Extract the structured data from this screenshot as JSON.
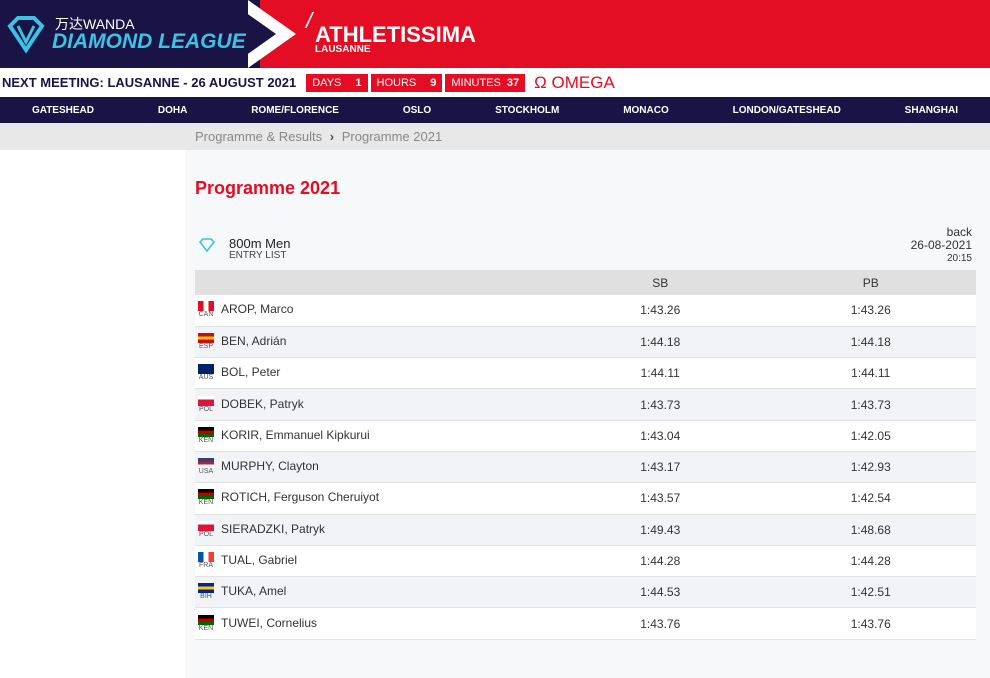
{
  "header": {
    "wanda": "万达WANDA",
    "league": "DIAMOND LEAGUE",
    "meeting_name": "ATHLETISSIMA",
    "meeting_city": "LAUSANNE"
  },
  "countdown": {
    "text": "NEXT MEETING: LAUSANNE - 26 AUGUST 2021",
    "days_label": "DAYS",
    "days": "1",
    "hours_label": "HOURS",
    "hours": "9",
    "minutes_label": "MINUTES",
    "minutes": "37",
    "sponsor": "Ω OMEGA"
  },
  "nav": [
    "GATESHEAD",
    "DOHA",
    "ROME/FLORENCE",
    "OSLO",
    "STOCKHOLM",
    "MONACO",
    "LONDON/GATESHEAD",
    "SHANGHAI"
  ],
  "breadcrumb": {
    "parent": "Programme & Results",
    "sep": "›",
    "current": "Programme 2021"
  },
  "page_title": "Programme 2021",
  "event": {
    "name": "800m Men",
    "sub": "ENTRY LIST",
    "back": "back",
    "date": "26-08-2021",
    "time": "20:15"
  },
  "table": {
    "headers": [
      "",
      "SB",
      "PB"
    ],
    "rows": [
      {
        "country": "CAN",
        "name": "AROP, Marco",
        "sb": "1:43.26",
        "pb": "1:43.26",
        "flag": [
          "#e30d24",
          "#fff",
          "#e30d24"
        ]
      },
      {
        "country": "ESP",
        "name": "BEN, Adrián",
        "sb": "1:44.18",
        "pb": "1:44.18",
        "flag": [
          "#c60b1e",
          "#ffc400",
          "#c60b1e"
        ]
      },
      {
        "country": "AUS",
        "name": "BOL, Peter",
        "sb": "1:44.11",
        "pb": "1:44.11",
        "flag": [
          "#012169",
          "#012169",
          "#012169"
        ]
      },
      {
        "country": "POL",
        "name": "DOBEK, Patryk",
        "sb": "1:43.73",
        "pb": "1:43.73",
        "flag": [
          "#fff",
          "#dc143c",
          "#dc143c"
        ]
      },
      {
        "country": "KEN",
        "name": "KORIR, Emmanuel Kipkurui",
        "sb": "1:43.04",
        "pb": "1:42.05",
        "flag": [
          "#000",
          "#bb0000",
          "#006600"
        ]
      },
      {
        "country": "USA",
        "name": "MURPHY, Clayton",
        "sb": "1:43.17",
        "pb": "1:42.93",
        "flag": [
          "#3c3b6e",
          "#b22234",
          "#fff"
        ]
      },
      {
        "country": "KEN",
        "name": "ROTICH, Ferguson Cheruiyot",
        "sb": "1:43.57",
        "pb": "1:42.54",
        "flag": [
          "#000",
          "#bb0000",
          "#006600"
        ]
      },
      {
        "country": "POL",
        "name": "SIERADZKI, Patryk",
        "sb": "1:49.43",
        "pb": "1:48.68",
        "flag": [
          "#fff",
          "#dc143c",
          "#dc143c"
        ]
      },
      {
        "country": "FRA",
        "name": "TUAL, Gabriel",
        "sb": "1:44.28",
        "pb": "1:44.28",
        "flag": [
          "#0055a4",
          "#fff",
          "#ef4135"
        ]
      },
      {
        "country": "BIH",
        "name": "TUKA, Amel",
        "sb": "1:44.53",
        "pb": "1:42.51",
        "flag": [
          "#002395",
          "#fecb00",
          "#002395"
        ]
      },
      {
        "country": "KEN",
        "name": "TUWEI, Cornelius",
        "sb": "1:43.76",
        "pb": "1:43.76",
        "flag": [
          "#000",
          "#bb0000",
          "#006600"
        ]
      }
    ]
  }
}
